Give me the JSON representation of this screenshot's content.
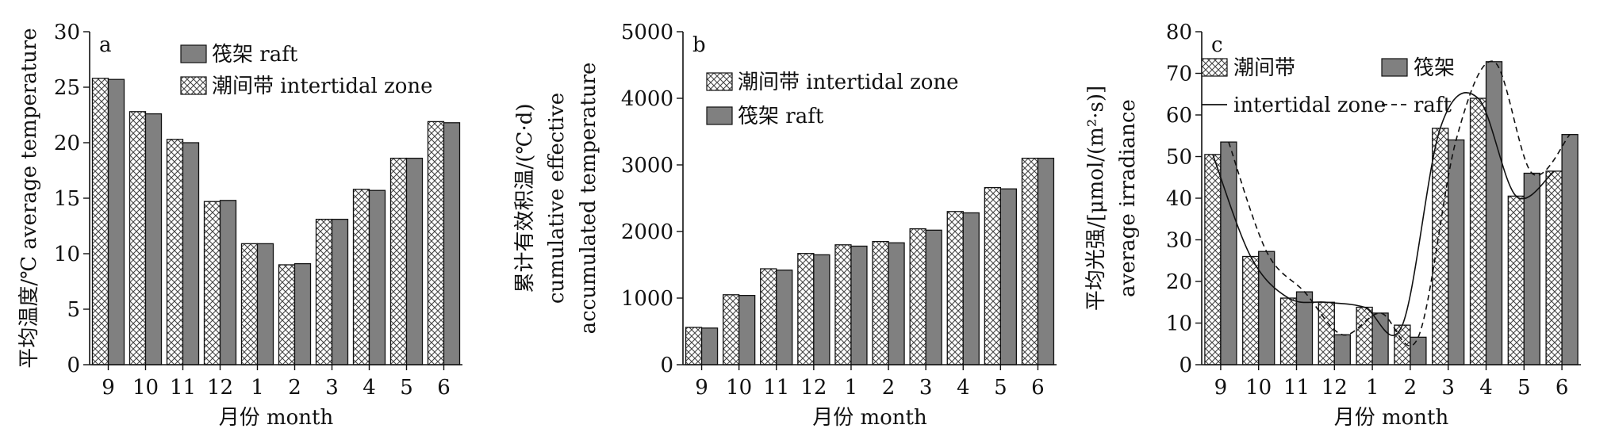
{
  "chart_data": [
    {
      "type": "bar",
      "panel_label": "a",
      "xlabel": "月份 month",
      "ylabel": [
        "平均温度/℃ average temperature"
      ],
      "categories": [
        "9",
        "10",
        "11",
        "12",
        "1",
        "2",
        "3",
        "4",
        "5",
        "6"
      ],
      "ylim": [
        0,
        30
      ],
      "yticks": [
        "0",
        "5",
        "10",
        "15",
        "20",
        "25",
        "30"
      ],
      "series": [
        {
          "name": "潮间带 intertidal zone",
          "style": "hatch",
          "values": [
            25.8,
            22.8,
            20.3,
            14.7,
            10.9,
            9.0,
            13.1,
            15.8,
            18.6,
            21.9
          ]
        },
        {
          "name": "筏架 raft",
          "style": "solid",
          "values": [
            25.7,
            22.6,
            20.0,
            14.8,
            10.9,
            9.1,
            13.1,
            15.7,
            18.6,
            21.8
          ]
        }
      ],
      "legend": [
        "筏架 raft",
        "潮间带 intertidal zone"
      ],
      "legend_position": "top-left"
    },
    {
      "type": "bar",
      "panel_label": "b",
      "xlabel": "月份 month",
      "ylabel": [
        "累计有效积温/(℃·d)",
        "cumulative effective",
        "accumulated temperature"
      ],
      "categories": [
        "9",
        "10",
        "11",
        "12",
        "1",
        "2",
        "3",
        "4",
        "5",
        "6"
      ],
      "ylim": [
        0,
        5000
      ],
      "yticks": [
        "0",
        "1000",
        "2000",
        "3000",
        "4000",
        "5000"
      ],
      "series": [
        {
          "name": "潮间带 intertidal zone",
          "style": "hatch",
          "values": [
            560,
            1050,
            1440,
            1670,
            1800,
            1850,
            2040,
            2300,
            2660,
            3100
          ]
        },
        {
          "name": "筏架 raft",
          "style": "solid",
          "values": [
            550,
            1040,
            1420,
            1650,
            1780,
            1830,
            2020,
            2280,
            2640,
            3100
          ]
        }
      ],
      "legend": [
        "潮间带 intertidal zone",
        "筏架 raft"
      ],
      "legend_position": "top-left"
    },
    {
      "type": "bar",
      "panel_label": "c",
      "xlabel": "月份 month",
      "ylabel": [
        "平均光强/[μmol/(m²·s)]",
        "average irradiance"
      ],
      "categories": [
        "9",
        "10",
        "11",
        "12",
        "1",
        "2",
        "3",
        "4",
        "5",
        "6"
      ],
      "ylim": [
        0,
        80
      ],
      "yticks": [
        "0",
        "10",
        "20",
        "30",
        "40",
        "50",
        "60",
        "70",
        "80"
      ],
      "series": [
        {
          "name": "潮间带",
          "style": "hatch",
          "values": [
            50.5,
            26.0,
            16.0,
            15.0,
            13.8,
            9.5,
            56.8,
            64.0,
            40.5,
            46.5
          ]
        },
        {
          "name": "筏架",
          "style": "solid",
          "values": [
            53.5,
            27.2,
            17.5,
            7.2,
            12.4,
            6.6,
            54.0,
            72.8,
            46.0,
            55.3
          ]
        }
      ],
      "trend_lines": [
        {
          "name": "intertidal zone",
          "style": "solid"
        },
        {
          "name": "raft",
          "style": "dashed"
        }
      ],
      "legend": [
        "潮间带",
        "筏架",
        "intertidal zone",
        "raft"
      ],
      "legend_position": "top"
    }
  ]
}
